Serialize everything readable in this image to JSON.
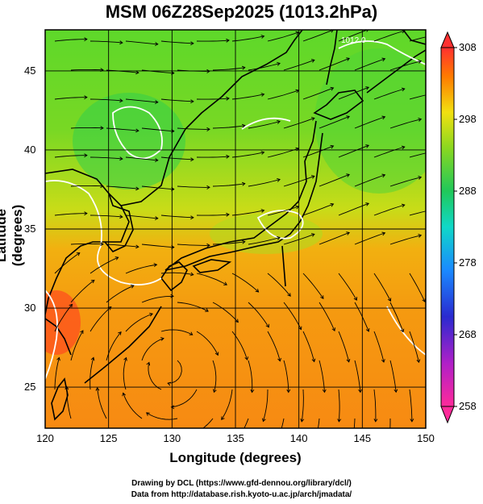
{
  "title": "MSM 06Z28Sep2025 (1013.2hPa)",
  "chart_data": {
    "type": "heatmap",
    "xlabel": "Longitude (degrees)",
    "ylabel": "Latitude  (degrees)",
    "xlim": [
      120,
      150
    ],
    "ylim": [
      22.4,
      47.6
    ],
    "x_ticks": [
      "120",
      "125",
      "130",
      "135",
      "140",
      "145",
      "150"
    ],
    "y_ticks": [
      "25",
      "30",
      "35",
      "40",
      "45"
    ],
    "colorbar": {
      "min": 258,
      "max": 308,
      "ticks": [
        "308",
        "298",
        "288",
        "278",
        "268",
        "258"
      ],
      "colors": [
        "#ff2a6a",
        "#e03070",
        "#d02090",
        "#8a1fbf",
        "#2020d0",
        "#1a7cff",
        "#10d8d8",
        "#20c85a",
        "#52d82a",
        "#a8e020",
        "#f2e010",
        "#ffa400",
        "#ff6a00",
        "#ff3a2a"
      ]
    },
    "contour_label": "1012.0"
  },
  "footer": {
    "line1": "Drawing by DCL (https://www.gfd-dennou.org/library/dcl/)",
    "line2": "Data from http://database.rish.kyoto-u.ac.jp/arch/jmadata/"
  }
}
